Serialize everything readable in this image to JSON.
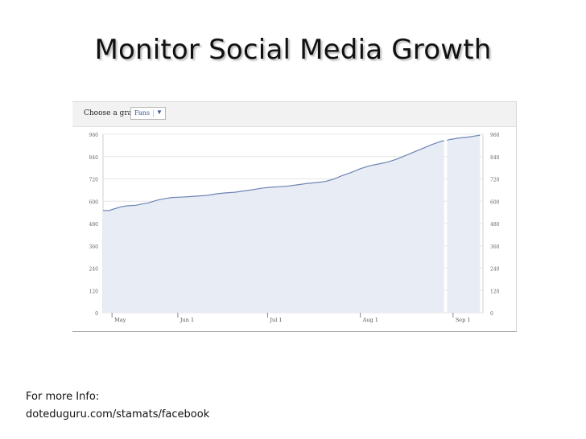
{
  "slide": {
    "title": "Monitor Social Media Growth",
    "footer_label": "For more Info:",
    "footer_link": "doteduguru.com/stamats/facebook"
  },
  "graph_controls": {
    "label": "Choose a graph:",
    "selected": "Fans",
    "arrow_icon": "triangle-down-icon"
  },
  "colors": {
    "line": "#6d84b4",
    "fill": "#e8ecf4",
    "grid": "#e6e6e6",
    "axis_text": "#666666"
  },
  "chart_data": {
    "type": "area",
    "title": "",
    "xlabel": "",
    "ylabel": "",
    "ylim": [
      0,
      960
    ],
    "y_ticks": [
      0,
      120,
      240,
      360,
      480,
      600,
      720,
      840,
      960
    ],
    "x_ticks": [
      "May",
      "Jun 1",
      "Jul 1",
      "Aug 1",
      "Sep 1"
    ],
    "x_tick_days": [
      0,
      22,
      52,
      83,
      114
    ],
    "x_range_days": [
      -3,
      124
    ],
    "gap_days": [
      111,
      112
    ],
    "series": [
      {
        "x": [
          -3,
          -1,
          1,
          3,
          5,
          8,
          10,
          12,
          15,
          18,
          20,
          23,
          26,
          29,
          32,
          35,
          38,
          41,
          44,
          47,
          50,
          53,
          56,
          59,
          62,
          65,
          68,
          71,
          74,
          77,
          80,
          83,
          86,
          89,
          92,
          95,
          98,
          101,
          104,
          107,
          110,
          113,
          116,
          119,
          121,
          123
        ],
        "y": [
          550,
          550,
          560,
          570,
          575,
          578,
          585,
          590,
          605,
          615,
          620,
          622,
          625,
          628,
          632,
          640,
          645,
          648,
          655,
          662,
          670,
          675,
          678,
          682,
          688,
          695,
          700,
          705,
          718,
          738,
          755,
          775,
          790,
          800,
          810,
          825,
          845,
          865,
          885,
          905,
          922,
          932,
          940,
          945,
          950,
          955
        ]
      }
    ]
  }
}
